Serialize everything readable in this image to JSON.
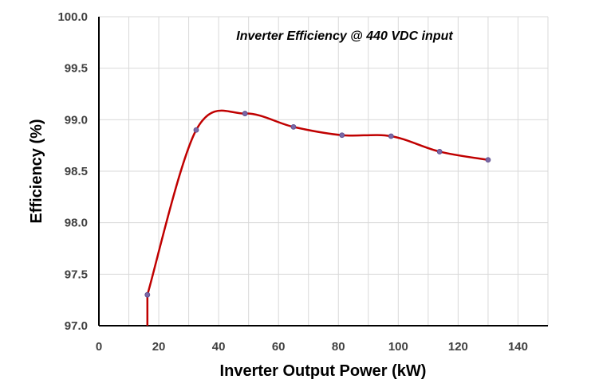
{
  "chart_data": {
    "type": "line",
    "title": "Inverter Efficiency @ 440 VDC input",
    "xlabel": "Inverter Output Power (kW)",
    "ylabel": "Efficiency (%)",
    "xlim": [
      0,
      150
    ],
    "ylim": [
      97.0,
      100.0
    ],
    "x_ticks": [
      "0",
      "20",
      "40",
      "60",
      "80",
      "100",
      "120",
      "140"
    ],
    "y_ticks": [
      "97.0",
      "97.5",
      "98.0",
      "98.5",
      "99.0",
      "99.5",
      "100.0"
    ],
    "grid": true,
    "line_color": "#c00000",
    "marker_color": "#7b68a6",
    "series": [
      {
        "x": [
          16.2,
          32.5,
          48.8,
          65.0,
          81.2,
          97.6,
          113.8,
          130.0
        ],
        "y": [
          97.3,
          98.9,
          99.06,
          98.93,
          98.85,
          98.84,
          98.69,
          98.61
        ]
      }
    ]
  }
}
